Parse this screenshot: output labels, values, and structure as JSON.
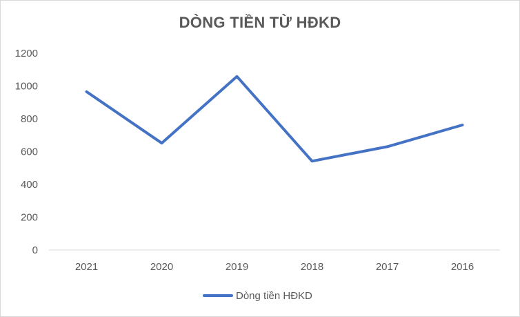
{
  "chart_data": {
    "type": "line",
    "title": "DÒNG TIỀN TỪ HĐKD",
    "categories": [
      "2021",
      "2020",
      "2019",
      "2018",
      "2017",
      "2016"
    ],
    "series": [
      {
        "name": "Dòng tiền HĐKD",
        "values": [
          965,
          652,
          1058,
          542,
          630,
          762
        ],
        "color": "#4472c4"
      }
    ],
    "ylim": [
      0,
      1200
    ],
    "yticks": [
      0,
      200,
      400,
      600,
      800,
      1000,
      1200
    ],
    "xlabel": "",
    "ylabel": "",
    "grid": false,
    "legend": "bottom"
  }
}
